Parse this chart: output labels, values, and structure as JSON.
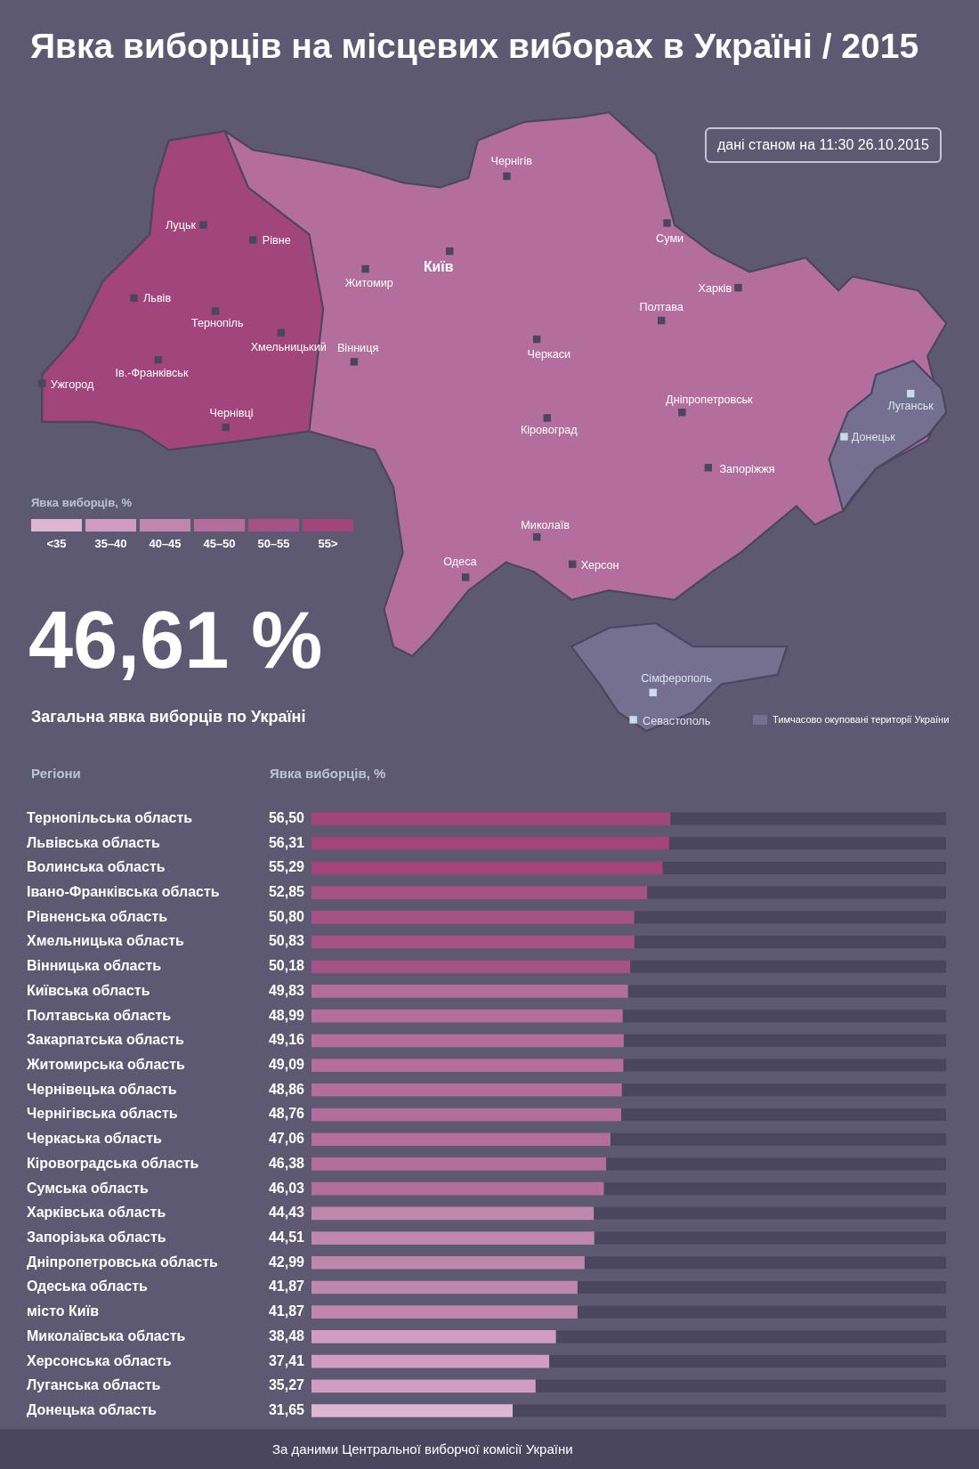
{
  "chart_data": [
    {
      "type": "other",
      "title": "Явка виборців на місцевих виборах в Україні / 2015",
      "legend_title": "Явка виборців, %",
      "categories": [
        "<35",
        "35–40",
        "40–45",
        "45–50",
        "50–55",
        "55>"
      ],
      "colors": [
        "#dcb6d2",
        "#d09cc4",
        "#bf86ae",
        "#b36e9d",
        "#a65187",
        "#a2457c"
      ],
      "annotations": [
        "дані станом на 11:30 26.10.2015",
        "Луцьк",
        "Рівне",
        "Львів",
        "Тернопіль",
        "Хмельницький",
        "Вінниця",
        "Житомир",
        "Київ",
        "Чернігів",
        "Суми",
        "Харків",
        "Полтава",
        "Черкаси",
        "Кіровоград",
        "Дніпропетровськ",
        "Запоріжжя",
        "Миколаїв",
        "Херсон",
        "Одеса",
        "Ужгород",
        "Ів.-Франківськ",
        "Чернівці",
        "Луганськ",
        "Донецьк",
        "Сімферополь",
        "Севастополь",
        "Тимчасово окуповані території України",
        "46,61 %",
        "Загальна явка виборців по Україні"
      ]
    },
    {
      "type": "bar",
      "orientation": "horizontal",
      "xlabel": "Явка виборців, %",
      "ylabel": "Регіони",
      "categories": [
        "Тернопільська область",
        "Львівська область",
        "Волинська область",
        "Івано-Франківська область",
        "Рівненська область",
        "Хмельницька область",
        "Вінницька область",
        "Київська область",
        "Полтавська область",
        "Закарпатська область",
        "Житомирська область",
        "Чернівецька область",
        "Чернігівська область",
        "Черкаська область",
        "Кіровоградська область",
        "Сумська область",
        "Харківська область",
        "Запорізька область",
        "Дніпропетровська область",
        "Одеська область",
        "місто Київ",
        "Миколаївська область",
        "Херсонська область",
        "Луганська область",
        "Донецька область"
      ],
      "values": [
        56.5,
        56.31,
        55.29,
        52.85,
        50.8,
        50.83,
        50.18,
        49.83,
        48.99,
        49.16,
        49.09,
        48.86,
        48.76,
        47.06,
        46.38,
        46.03,
        44.43,
        44.51,
        42.99,
        41.87,
        41.87,
        38.48,
        37.41,
        35.27,
        31.65
      ],
      "value_labels": [
        "56,50",
        "56,31",
        "55,29",
        "52,85",
        "50,80",
        "50,83",
        "50,18",
        "49,83",
        "48,99",
        "49,16",
        "49,09",
        "48,86",
        "48,76",
        "47,06",
        "46,38",
        "46,03",
        "44,43",
        "44,51",
        "42,99",
        "41,87",
        "41,87",
        "38,48",
        "37,41",
        "35,27",
        "31,65"
      ],
      "colors": [
        "#a2457c",
        "#a2457c",
        "#a2457c",
        "#a65187",
        "#a65187",
        "#a65187",
        "#a65187",
        "#b36e9d",
        "#b36e9d",
        "#b36e9d",
        "#b36e9d",
        "#b36e9d",
        "#b36e9d",
        "#b36e9d",
        "#b36e9d",
        "#b36e9d",
        "#bf86ae",
        "#bf86ae",
        "#bf86ae",
        "#bf86ae",
        "#bf86ae",
        "#d09cc4",
        "#d09cc4",
        "#d09cc4",
        "#dcb6d2"
      ],
      "xlim": [
        0,
        100
      ],
      "tick_labels": "y",
      "annotations": [
        "За даними Центральної виборчої комісії України"
      ]
    }
  ]
}
